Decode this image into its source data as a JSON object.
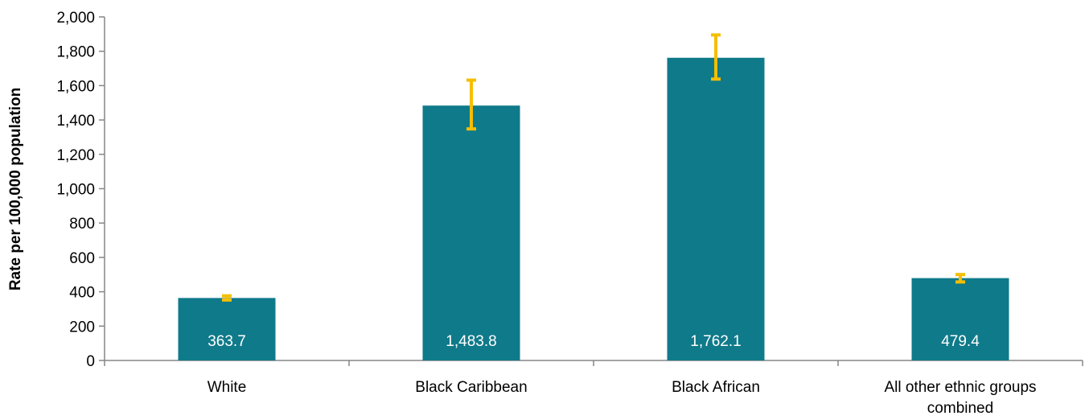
{
  "chart_data": {
    "type": "bar",
    "categories": [
      [
        "White"
      ],
      [
        "Black Caribbean"
      ],
      [
        "Black African"
      ],
      [
        "All other ethnic groups",
        "combined"
      ]
    ],
    "values": [
      363.7,
      1483.8,
      1762.1,
      479.4
    ],
    "value_labels": [
      "363.7",
      "1,483.8",
      "1,762.1",
      "479.4"
    ],
    "error_bars": [
      {
        "low": 352,
        "high": 376
      },
      {
        "low": 1348,
        "high": 1632
      },
      {
        "low": 1638,
        "high": 1895
      },
      {
        "low": 457,
        "high": 500
      }
    ],
    "ylabel": "Rate per 100,000 population",
    "ylim": [
      0,
      2000
    ],
    "yticks": [
      0,
      200,
      400,
      600,
      800,
      1000,
      1200,
      1400,
      1600,
      1800,
      2000
    ],
    "ytick_labels": [
      "0",
      "200",
      "400",
      "600",
      "800",
      "1,000",
      "1,200",
      "1,400",
      "1,600",
      "1,800",
      "2,000"
    ],
    "grid": false,
    "legend": "none",
    "colors": {
      "bar": "#0f7a8a",
      "error_bar": "#f5be00",
      "axis": "#868686",
      "data_label": "#ffffff"
    }
  }
}
